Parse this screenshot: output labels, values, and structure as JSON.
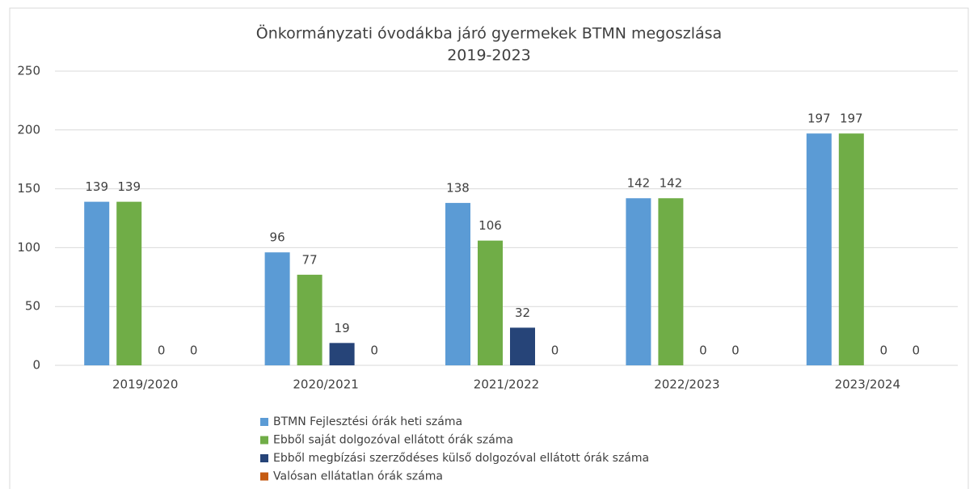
{
  "chart_data": {
    "type": "bar",
    "title": "Önkormányzati óvodákba járó gyermekek BTMN megoszlása",
    "subtitle": "2019-2023",
    "categories": [
      "2019/2020",
      "2020/2021",
      "2021/2022",
      "2022/2023",
      "2023/2024"
    ],
    "series": [
      {
        "name": "BTMN Fejlesztési órák heti száma",
        "color": "#5b9bd5",
        "values": [
          139,
          96,
          138,
          142,
          197
        ]
      },
      {
        "name": "Ebből saját dolgozóval ellátott órák száma",
        "color": "#70ad47",
        "values": [
          139,
          77,
          106,
          142,
          197
        ]
      },
      {
        "name": "Ebből megbízási szerződéses külső dolgozóval ellátott órák száma",
        "color": "#264478",
        "values": [
          0,
          19,
          32,
          0,
          0
        ]
      },
      {
        "name": "Valósan ellátatlan órák száma",
        "color": "#c55a11",
        "values": [
          0,
          0,
          0,
          0,
          0
        ]
      }
    ],
    "ylim": [
      0,
      250
    ],
    "yticks": [
      0,
      50,
      100,
      150,
      200,
      250
    ],
    "grid": true,
    "legend": "bottom"
  }
}
